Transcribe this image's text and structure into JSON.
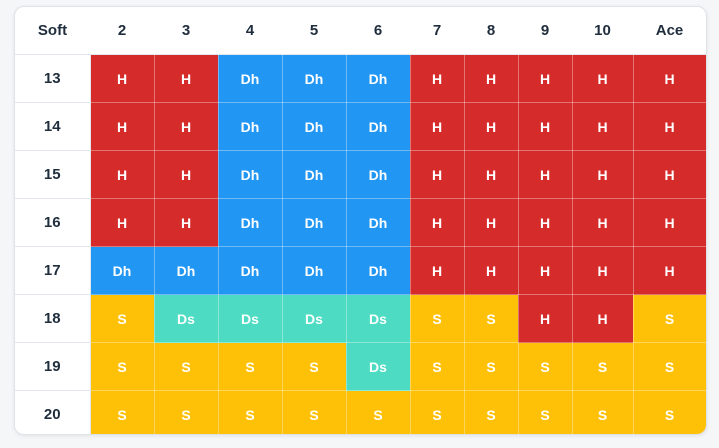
{
  "header": [
    "Soft",
    "2",
    "3",
    "4",
    "5",
    "6",
    "7",
    "8",
    "9",
    "10",
    "Ace"
  ],
  "rows": [
    {
      "label": "13",
      "cells": [
        "H",
        "H",
        "Dh",
        "Dh",
        "Dh",
        "H",
        "H",
        "H",
        "H",
        "H"
      ]
    },
    {
      "label": "14",
      "cells": [
        "H",
        "H",
        "Dh",
        "Dh",
        "Dh",
        "H",
        "H",
        "H",
        "H",
        "H"
      ]
    },
    {
      "label": "15",
      "cells": [
        "H",
        "H",
        "Dh",
        "Dh",
        "Dh",
        "H",
        "H",
        "H",
        "H",
        "H"
      ]
    },
    {
      "label": "16",
      "cells": [
        "H",
        "H",
        "Dh",
        "Dh",
        "Dh",
        "H",
        "H",
        "H",
        "H",
        "H"
      ]
    },
    {
      "label": "17",
      "cells": [
        "Dh",
        "Dh",
        "Dh",
        "Dh",
        "Dh",
        "H",
        "H",
        "H",
        "H",
        "H"
      ]
    },
    {
      "label": "18",
      "cells": [
        "S",
        "Ds",
        "Ds",
        "Ds",
        "Ds",
        "S",
        "S",
        "H",
        "H",
        "S"
      ]
    },
    {
      "label": "19",
      "cells": [
        "S",
        "S",
        "S",
        "S",
        "Ds",
        "S",
        "S",
        "S",
        "S",
        "S"
      ]
    },
    {
      "label": "20",
      "cells": [
        "S",
        "S",
        "S",
        "S",
        "S",
        "S",
        "S",
        "S",
        "S",
        "S"
      ]
    }
  ],
  "colors": {
    "H": "#d62b2b",
    "Dh": "#2196f3",
    "S": "#ffc107",
    "Ds": "#4ddbc3"
  }
}
